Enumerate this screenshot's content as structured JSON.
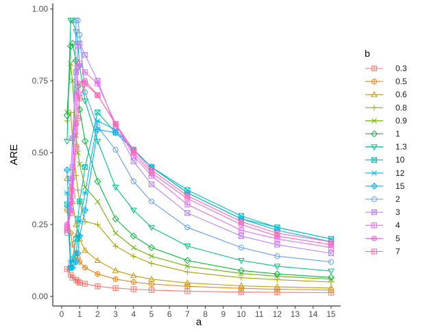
{
  "chart_data": {
    "type": "line",
    "title": "",
    "xlabel": "a",
    "ylabel": "ARE",
    "xlim": [
      0,
      15.4
    ],
    "ylim": [
      0,
      1.0
    ],
    "x_ticks": [
      0,
      1,
      2,
      3,
      4,
      5,
      6,
      7,
      8,
      9,
      10,
      11,
      12,
      13,
      14,
      15
    ],
    "y_ticks": [
      0.0,
      0.25,
      0.5,
      0.75,
      1.0
    ],
    "y_tick_labels": [
      "0.00",
      "0.25",
      "0.50",
      "0.75",
      "1.00"
    ],
    "legend_title": "b",
    "legend_position": "right",
    "x": [
      0.3,
      0.5,
      0.6,
      0.8,
      0.9,
      1,
      1.3,
      2,
      3,
      4,
      5,
      7,
      10,
      12,
      15
    ],
    "series": [
      {
        "name": "0.3",
        "color": "#F8766D",
        "marker": "square-cross",
        "values": [
          0.095,
          0.075,
          0.065,
          0.058,
          0.052,
          0.048,
          0.044,
          0.035,
          0.029,
          0.025,
          0.022,
          0.018,
          0.015,
          0.014,
          0.013
        ]
      },
      {
        "name": "0.5",
        "color": "#E6861E",
        "marker": "circle-plus",
        "values": [
          0.3,
          0.22,
          0.18,
          0.15,
          0.135,
          0.12,
          0.1,
          0.078,
          0.06,
          0.05,
          0.043,
          0.035,
          0.028,
          0.025,
          0.022
        ]
      },
      {
        "name": "0.6",
        "color": "#C99800",
        "marker": "triangle",
        "values": [
          0.41,
          0.38,
          0.33,
          0.25,
          0.22,
          0.2,
          0.16,
          0.125,
          0.09,
          0.072,
          0.06,
          0.047,
          0.037,
          0.033,
          0.029
        ]
      },
      {
        "name": "0.8",
        "color": "#A3A500",
        "marker": "plus",
        "values": [
          0.61,
          0.64,
          0.55,
          0.42,
          0.37,
          0.33,
          0.26,
          0.25,
          0.175,
          0.14,
          0.115,
          0.085,
          0.065,
          0.058,
          0.05
        ]
      },
      {
        "name": "0.9",
        "color": "#6BB100",
        "marker": "x",
        "values": [
          0.64,
          0.81,
          0.75,
          0.56,
          0.5,
          0.46,
          0.38,
          0.33,
          0.22,
          0.17,
          0.14,
          0.105,
          0.08,
          0.07,
          0.06
        ]
      },
      {
        "name": "1",
        "color": "#00BA38",
        "marker": "diamond",
        "values": [
          0.63,
          0.87,
          0.88,
          0.82,
          0.73,
          0.65,
          0.54,
          0.4,
          0.27,
          0.21,
          0.17,
          0.125,
          0.09,
          0.078,
          0.066
        ]
      },
      {
        "name": "1.3",
        "color": "#00BF7D",
        "marker": "triangle-down",
        "values": [
          0.54,
          0.96,
          0.96,
          0.92,
          0.88,
          0.8,
          0.68,
          0.54,
          0.38,
          0.3,
          0.24,
          0.175,
          0.125,
          0.105,
          0.088
        ]
      },
      {
        "name": "10",
        "color": "#00C0AF",
        "marker": "square-x",
        "values": [
          0.32,
          0.1,
          0.13,
          0.2,
          0.27,
          0.33,
          0.45,
          0.64,
          0.57,
          0.51,
          0.45,
          0.37,
          0.28,
          0.24,
          0.2
        ]
      },
      {
        "name": "12",
        "color": "#00BCD8",
        "marker": "asterisk",
        "values": [
          0.36,
          0.12,
          0.12,
          0.15,
          0.21,
          0.26,
          0.36,
          0.61,
          0.58,
          0.51,
          0.45,
          0.36,
          0.27,
          0.24,
          0.2
        ]
      },
      {
        "name": "15",
        "color": "#00B0F6",
        "marker": "diamond-plus",
        "values": [
          0.44,
          0.1,
          0.1,
          0.12,
          0.15,
          0.21,
          0.3,
          0.58,
          0.57,
          0.51,
          0.45,
          0.36,
          0.27,
          0.23,
          0.19
        ]
      },
      {
        "name": "2",
        "color": "#619CFF",
        "marker": "circle",
        "values": [
          0.22,
          0.31,
          0.41,
          0.96,
          0.96,
          0.91,
          0.71,
          0.59,
          0.51,
          0.4,
          0.33,
          0.24,
          0.17,
          0.14,
          0.12
        ]
      },
      {
        "name": "3",
        "color": "#B983FF",
        "marker": "square-x",
        "values": [
          0.23,
          0.41,
          0.55,
          0.78,
          0.87,
          0.88,
          0.84,
          0.75,
          0.59,
          0.47,
          0.39,
          0.29,
          0.21,
          0.18,
          0.15
        ]
      },
      {
        "name": "4",
        "color": "#E76BF3",
        "marker": "square-plus",
        "values": [
          0.24,
          0.33,
          0.45,
          0.7,
          0.8,
          0.81,
          0.78,
          0.74,
          0.6,
          0.49,
          0.42,
          0.32,
          0.23,
          0.2,
          0.17
        ]
      },
      {
        "name": "5",
        "color": "#FD61D1",
        "marker": "circle-x",
        "values": [
          0.25,
          0.3,
          0.37,
          0.6,
          0.71,
          0.74,
          0.75,
          0.7,
          0.6,
          0.5,
          0.43,
          0.34,
          0.25,
          0.21,
          0.18
        ]
      },
      {
        "name": "7",
        "color": "#FF67A4",
        "marker": "square-cross",
        "values": [
          0.23,
          0.29,
          0.35,
          0.52,
          0.62,
          0.69,
          0.74,
          0.7,
          0.6,
          0.51,
          0.44,
          0.35,
          0.26,
          0.22,
          0.19
        ]
      }
    ]
  }
}
